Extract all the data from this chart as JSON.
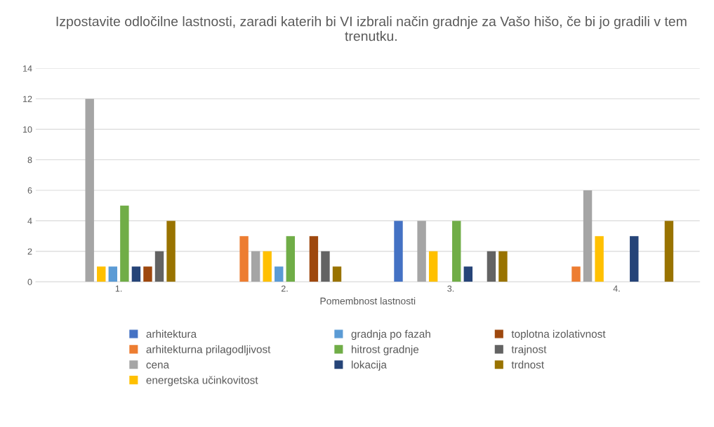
{
  "chart_data": {
    "type": "bar",
    "title": "Izpostavite odločilne lastnosti, zaradi katerih bi VI izbrali način gradnje za Vašo hišo, če bi jo gradili v tem trenutku.",
    "xlabel": "Pomembnost lastnosti",
    "categories": [
      "1.",
      "2.",
      "3.",
      "4."
    ],
    "series": [
      {
        "name": "arhitektura",
        "color": "#4472c4",
        "values": [
          0,
          0,
          4,
          0
        ]
      },
      {
        "name": "arhitekturna prilagodljivost",
        "color": "#ed7d31",
        "values": [
          0,
          3,
          0,
          1
        ]
      },
      {
        "name": "cena",
        "color": "#a5a5a5",
        "values": [
          12,
          2,
          4,
          6
        ]
      },
      {
        "name": "energetska učinkovitost",
        "color": "#ffc000",
        "values": [
          1,
          2,
          2,
          3
        ]
      },
      {
        "name": "gradnja po fazah",
        "color": "#5b9bd5",
        "values": [
          1,
          1,
          0,
          0
        ]
      },
      {
        "name": "hitrost gradnje",
        "color": "#70ad47",
        "values": [
          5,
          3,
          4,
          0
        ]
      },
      {
        "name": "lokacija",
        "color": "#264478",
        "values": [
          1,
          0,
          1,
          3
        ]
      },
      {
        "name": "toplotna izolativnost",
        "color": "#9e480e",
        "values": [
          1,
          3,
          0,
          0
        ]
      },
      {
        "name": "trajnost",
        "color": "#636363",
        "values": [
          2,
          2,
          2,
          0
        ]
      },
      {
        "name": "trdnost",
        "color": "#997300",
        "values": [
          4,
          1,
          2,
          4
        ]
      }
    ],
    "ylim": [
      0,
      14
    ],
    "yticks": [
      0,
      2,
      4,
      6,
      8,
      10,
      12,
      14
    ],
    "grid": "y",
    "legend": "bottom"
  }
}
